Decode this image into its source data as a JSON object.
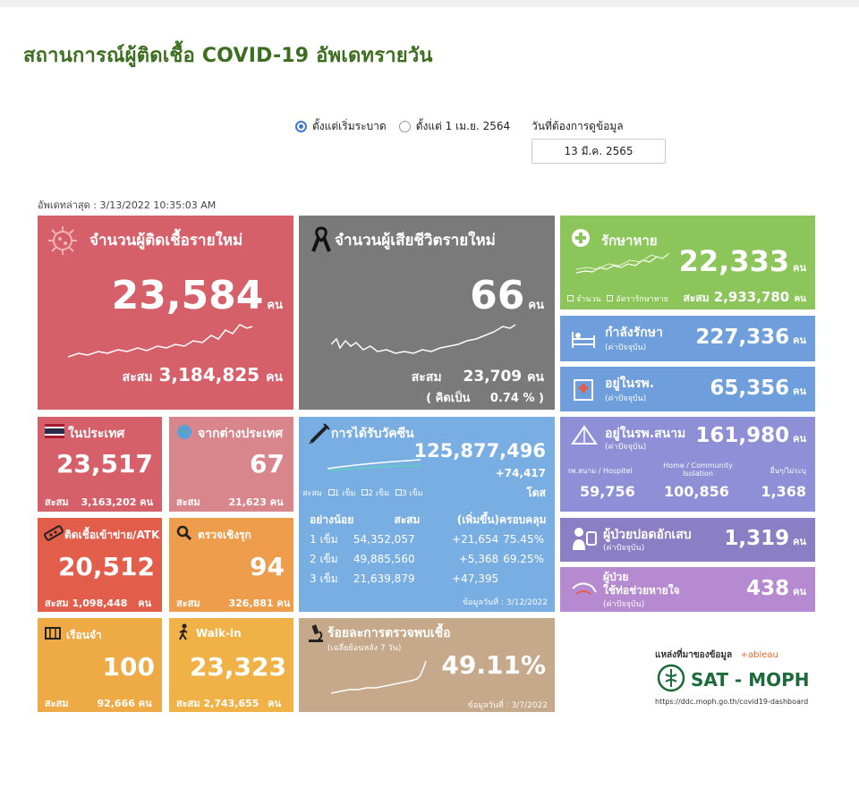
{
  "page": {
    "title": "สถานการณ์ผู้ติดเชื้อ COVID-19 อัพเดทรายวัน"
  },
  "filters": {
    "options": [
      {
        "label": "ตั้งแต่เริ่มระบาด",
        "selected": true
      },
      {
        "label": "ตั้งแต่ 1 เม.ย. 2564",
        "selected": false
      }
    ],
    "date_label": "วันที่ต้องการดูข้อมูล",
    "date_value": "13 มี.ค. 2565"
  },
  "updated": "อัพเดทล่าสุด : 3/13/2022 10:35:03 AM",
  "colors": {
    "new_cases": "#d6606a",
    "deaths": "#7a7a7a",
    "recovered": "#8cc65a",
    "treating": "#6e9fdc",
    "domestic": "#d6606a",
    "foreign": "#d9858c",
    "vaccine": "#79aee3",
    "atk": "#e25d4a",
    "proactive": "#ee9d4c",
    "prison": "#eeaa44",
    "walkin": "#f0b247",
    "positivity": "#c6a98a",
    "field_hospital": "#8e8fd6",
    "pneumonia": "#8a7fc4",
    "ventilator": "#b58ad0",
    "title_green": "#3c6e1f"
  },
  "new_cases": {
    "label": "จำนวนผู้ติดเชื้อรายใหม่",
    "value": "23,584",
    "unit": "คน",
    "cum_label": "สะสม",
    "cum_value": "3,184,825",
    "cum_unit": "คน"
  },
  "deaths": {
    "label": "จำนวนผู้เสียชีวิตรายใหม่",
    "value": "66",
    "unit": "คน",
    "cum_label": "สะสม",
    "cum_value": "23,709",
    "cum_unit": "คน",
    "rate_label": "( คิดเป็น",
    "rate_value": "0.74 % )"
  },
  "recovered": {
    "label": "รักษาหาย",
    "value": "22,333",
    "unit": "คน",
    "legend1": "จำนวน",
    "legend2": "อัตรารักษาหาย",
    "cum_label": "สะสม",
    "cum_value": "2,933,780",
    "cum_unit": "คน"
  },
  "treating": {
    "label": "กำลังรักษา",
    "sub": "(ค่าปัจจุบัน)",
    "value": "227,336",
    "unit": "คน"
  },
  "hospital": {
    "label": "อยู่ในรพ.",
    "sub": "(ค่าปัจจุบัน)",
    "value": "65,356",
    "unit": "คน"
  },
  "domestic": {
    "label": "ในประเทศ",
    "value": "23,517",
    "cum_label": "สะสม",
    "cum_value": "3,163,202",
    "cum_unit": "คน"
  },
  "foreign": {
    "label": "จากต่างประเทศ",
    "value": "67",
    "cum_label": "สะสม",
    "cum_value": "21,623",
    "cum_unit": "คน"
  },
  "vaccine": {
    "label": "การได้รับวัคซีน",
    "total": "125,877,496",
    "added": "+74,417",
    "dose_unit": "โดส",
    "legend": {
      "cum": "สะสม",
      "d1": "1 เข็ม",
      "d2": "2 เข็ม",
      "d3": "3 เข็ม"
    },
    "headers": [
      "อย่างน้อย",
      "สะสม",
      "(เพิ่มขึ้น)",
      "ครอบคลุม"
    ],
    "rows": [
      {
        "dose": "1 เข็ม",
        "cum": "54,352,057",
        "inc": "+21,654",
        "cover": "75.45%"
      },
      {
        "dose": "2 เข็ม",
        "cum": "49,885,560",
        "inc": "+5,368",
        "cover": "69.25%"
      },
      {
        "dose": "3 เข็ม",
        "cum": "21,639,879",
        "inc": "+47,395",
        "cover": ""
      }
    ],
    "asof": "ข้อมูลวันที่ : 3/12/2022"
  },
  "field_hospital": {
    "label": "อยู่ในรพ.สนาม",
    "sub": "(ค่าปัจจุบัน)",
    "value": "161,980",
    "unit": "คน",
    "cols": [
      {
        "label": "รพ.สนาม / Hospitel",
        "value": "59,756"
      },
      {
        "label": "Home / Community Isolation",
        "value": "100,856"
      },
      {
        "label": "อื่นๆ/ไม่ระบุ",
        "value": "1,368"
      }
    ]
  },
  "atk": {
    "label": "ติดเชื้อเข้าข่าย/ATK",
    "value": "20,512",
    "cum_label": "สะสม",
    "cum_value": "1,098,448",
    "cum_unit": "คน"
  },
  "proactive": {
    "label": "ตรวจเชิงรุก",
    "value": "94",
    "cum_label": "สะสม",
    "cum_value": "326,881",
    "cum_unit": "คน"
  },
  "pneumonia": {
    "label": "ผู้ป่วยปอดอักเสบ",
    "sub": "(ค่าปัจจุบัน)",
    "value": "1,319",
    "unit": "คน"
  },
  "ventilator": {
    "label1": "ผู้ป่วย",
    "label2": "ใช้ท่อช่วยหายใจ",
    "sub": "(ค่าปัจจุบัน)",
    "value": "438",
    "unit": "คน"
  },
  "prison": {
    "label": "เรือนจำ",
    "value": "100",
    "cum_label": "สะสม",
    "cum_value": "92,666",
    "cum_unit": "คน"
  },
  "walkin": {
    "label": "Walk-in",
    "value": "23,323",
    "cum_label": "สะสม",
    "cum_value": "2,743,655",
    "cum_unit": "คน"
  },
  "positivity": {
    "label": "ร้อยละการตรวจพบเชื้อ",
    "sub": "(เฉลี่ยย้อนหลัง 7 วัน)",
    "value": "49.11%",
    "asof": "ข้อมูลวันที่ : 3/7/2022"
  },
  "footer": {
    "source_label": "แหล่งที่มาของข้อมูล",
    "tableau": "+ableau",
    "brand": "SAT - MOPH",
    "url": "https://ddc.moph.go.th/covid19-dashboard"
  }
}
